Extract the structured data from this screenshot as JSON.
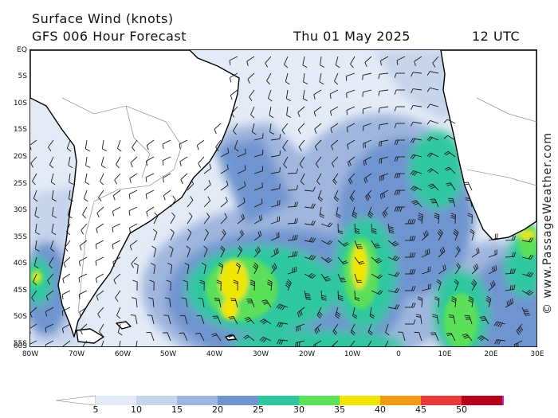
{
  "header": {
    "title": "Surface Wind (knots)",
    "subtitle": "GFS 006 Hour Forecast",
    "date": "Thu 01 May 2025",
    "time": "12 UTC"
  },
  "axes": {
    "lat_labels": [
      "EQ",
      "5S",
      "10S",
      "15S",
      "20S",
      "25S",
      "30S",
      "35S",
      "40S",
      "45S",
      "50S",
      "55S",
      "60S"
    ],
    "lon_labels": [
      "80W",
      "70W",
      "60W",
      "50W",
      "40W",
      "30W",
      "20W",
      "10W",
      "0",
      "10E",
      "20E",
      "30E"
    ]
  },
  "watermark": "© www.PassageWeather.com",
  "colorbar": {
    "labels": [
      "5",
      "10",
      "15",
      "20",
      "25",
      "30",
      "35",
      "40",
      "45",
      "50"
    ],
    "colors": [
      "#e4ebf6",
      "#c6d4ec",
      "#9fb6de",
      "#6f94cf",
      "#2ec7a0",
      "#5ce05a",
      "#f0e600",
      "#f29a12",
      "#e63a3a",
      "#b8001a",
      "#c026c8"
    ]
  },
  "map": {
    "ocean_base_color": "#e4ebf6",
    "land_color": "#ffffff",
    "coast_color": "#000000"
  }
}
